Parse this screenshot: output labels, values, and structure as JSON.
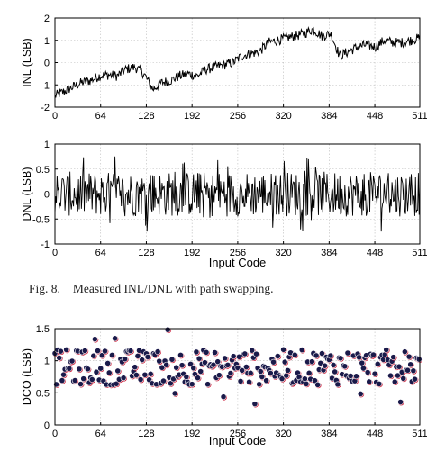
{
  "caption": {
    "label": "Fig. 8.",
    "text": "Measured INL/DNL with path swapping."
  },
  "chart_data": [
    {
      "type": "line",
      "ylabel": "INL (LSB)",
      "xlabel": "",
      "xlim": [
        0,
        511
      ],
      "ylim": [
        -2,
        2
      ],
      "x_ticks": [
        0,
        64,
        128,
        192,
        256,
        320,
        384,
        448,
        511
      ],
      "y_ticks": [
        -2,
        -1,
        0,
        1,
        2
      ],
      "grid": true,
      "series": [
        {
          "values": [
            -1.5,
            -1.3,
            -1.1,
            -0.9,
            -0.8,
            -0.6,
            -0.55,
            -0.6,
            -0.3,
            -0.2,
            -0.5,
            -1.2,
            -0.9,
            -0.8,
            -0.6,
            -0.5,
            -0.6,
            -0.3,
            -0.2,
            -0.1,
            0.0,
            0.3,
            0.4,
            0.5,
            0.9,
            1.0,
            1.1,
            1.2,
            1.3,
            1.5,
            1.2,
            1.3,
            0.3,
            0.5,
            0.7,
            0.8,
            0.7,
            1.0,
            0.9,
            0.9,
            1.0,
            1.1
          ]
        }
      ]
    },
    {
      "type": "line",
      "ylabel": "DNL (LSB)",
      "xlabel": "Input Code",
      "xlim": [
        0,
        511
      ],
      "ylim": [
        -1,
        1
      ],
      "x_ticks": [
        0,
        64,
        128,
        192,
        256,
        320,
        384,
        448,
        511
      ],
      "y_ticks": [
        -1,
        -0.5,
        0,
        0.5,
        1
      ],
      "grid": true,
      "series": [
        {
          "range": [
            -0.75,
            0.85
          ]
        }
      ]
    },
    {
      "type": "scatter",
      "ylabel": "DCO (LSB)",
      "xlabel": "Input Code",
      "xlim": [
        0,
        511
      ],
      "ylim": [
        0,
        1.5
      ],
      "x_ticks": [
        0,
        64,
        128,
        192,
        256,
        320,
        384,
        448,
        511
      ],
      "y_ticks": [
        0,
        0.5,
        1,
        1.5
      ],
      "grid": true,
      "series": [
        {
          "mean": 0.9,
          "range": [
            0.25,
            1.5
          ],
          "marker_color": "#1a1a4a",
          "marker_edge": "#c8102e"
        }
      ]
    }
  ]
}
